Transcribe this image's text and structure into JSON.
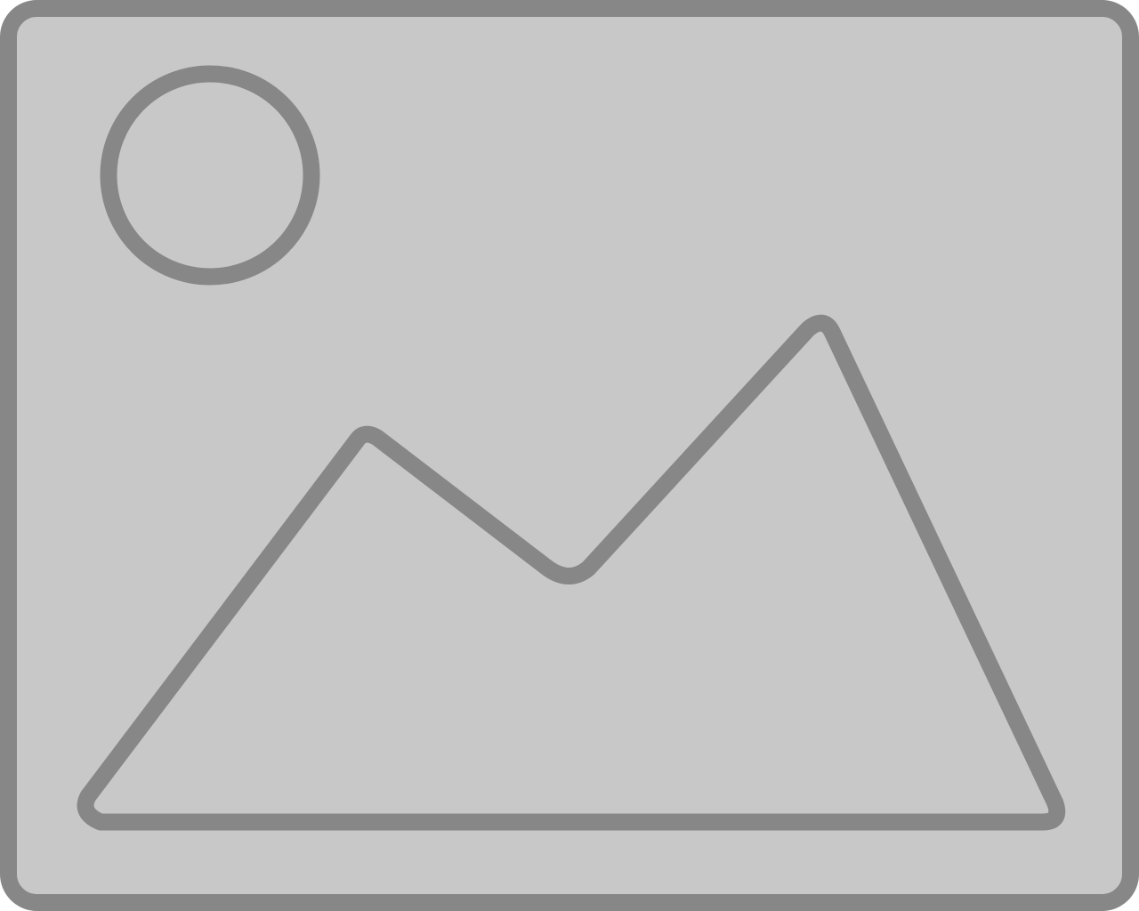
{
  "placeholder": {
    "icon": "image-placeholder-icon",
    "fill_color": "#c8c8c8",
    "stroke_color": "#878787",
    "parts": [
      "frame",
      "sun-circle",
      "mountain-range"
    ]
  }
}
